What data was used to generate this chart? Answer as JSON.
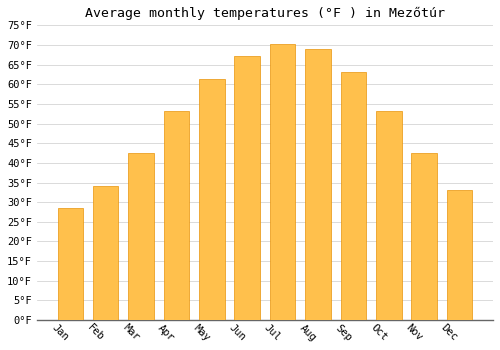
{
  "title": "Average monthly temperatures (°F ) in Mezőtúr",
  "months": [
    "Jan",
    "Feb",
    "Mar",
    "Apr",
    "May",
    "Jun",
    "Jul",
    "Aug",
    "Sep",
    "Oct",
    "Nov",
    "Dec"
  ],
  "values": [
    28.4,
    34.2,
    42.4,
    53.2,
    61.3,
    67.3,
    70.3,
    69.1,
    63.1,
    53.2,
    42.4,
    33.1
  ],
  "bar_color": "#FFC04C",
  "bar_edge_color": "#E8940A",
  "background_color": "#ffffff",
  "grid_color": "#cccccc",
  "ylim": [
    0,
    75
  ],
  "yticks": [
    0,
    5,
    10,
    15,
    20,
    25,
    30,
    35,
    40,
    45,
    50,
    55,
    60,
    65,
    70,
    75
  ],
  "tick_label_fontsize": 7.5,
  "title_fontsize": 9.5,
  "font_family": "monospace",
  "xlabel_rotation": -45
}
